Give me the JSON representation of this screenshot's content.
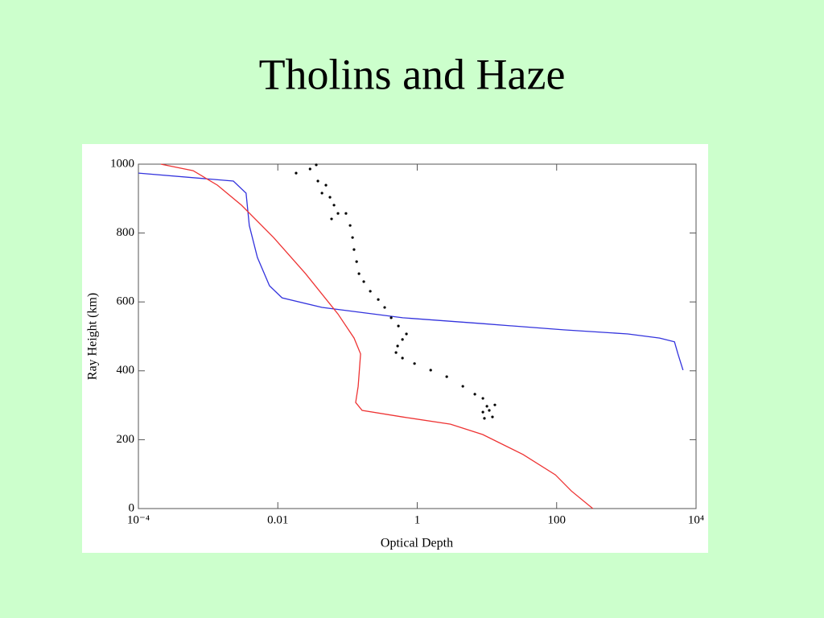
{
  "chart_data": {
    "type": "line",
    "title": "Tholins and Haze",
    "xlabel": "Optical Depth",
    "ylabel": "Ray Height (km)",
    "xscale": "log",
    "xlim": [
      0.0001,
      10000
    ],
    "xticks": [
      {
        "value": 0.0001,
        "label": "10⁻⁴"
      },
      0.01,
      1,
      100,
      {
        "value": 10000,
        "label": "10⁴"
      }
    ],
    "ylim": [
      0,
      1000
    ],
    "yticks": [
      0,
      200,
      400,
      600,
      800,
      1000
    ],
    "series": [
      {
        "type": "line",
        "color": "#3333dd",
        "x": [
          0.0001,
          0.0023,
          0.0035,
          0.0039,
          0.0051,
          0.0076,
          0.0115,
          0.043,
          0.62,
          8.7,
          126,
          1050,
          3000,
          4900,
          5500,
          6500
        ],
        "y": [
          974,
          951,
          916,
          822,
          729,
          647,
          612,
          584,
          554,
          537,
          519,
          507,
          495,
          484,
          449,
          402
        ]
      },
      {
        "type": "line",
        "color": "#ee3333",
        "x": [
          0.00021,
          0.00061,
          0.00136,
          0.003,
          0.0087,
          0.025,
          0.073,
          0.124,
          0.154,
          0.142,
          0.131,
          0.162,
          0.62,
          3.0,
          8.7,
          33,
          96,
          163,
          330
        ],
        "y": [
          1000,
          981,
          939,
          881,
          787,
          682,
          565,
          495,
          449,
          355,
          308,
          285,
          266,
          245,
          215,
          157,
          98,
          51,
          0
        ]
      },
      {
        "type": "scatter",
        "color": "#000000",
        "x": [
          0.0183,
          0.029,
          0.0356,
          0.0376,
          0.049,
          0.043,
          0.056,
          0.064,
          0.073,
          0.059,
          0.095,
          0.109,
          0.118,
          0.124,
          0.135,
          0.146,
          0.171,
          0.212,
          0.276,
          0.341,
          0.423,
          0.537,
          0.7,
          0.614,
          0.523,
          0.496,
          0.614,
          0.914,
          1.56,
          2.65,
          4.51,
          6.71,
          8.75,
          10,
          13,
          8.75,
          12,
          9.2,
          10.8
        ],
        "y": [
          974,
          986,
          998,
          951,
          939,
          916,
          904,
          881,
          857,
          841,
          857,
          822,
          787,
          752,
          717,
          682,
          659,
          631,
          607,
          584,
          554,
          530,
          507,
          491,
          472,
          453,
          437,
          421,
          402,
          383,
          355,
          332,
          320,
          297,
          301,
          280,
          266,
          262,
          285
        ]
      }
    ]
  }
}
